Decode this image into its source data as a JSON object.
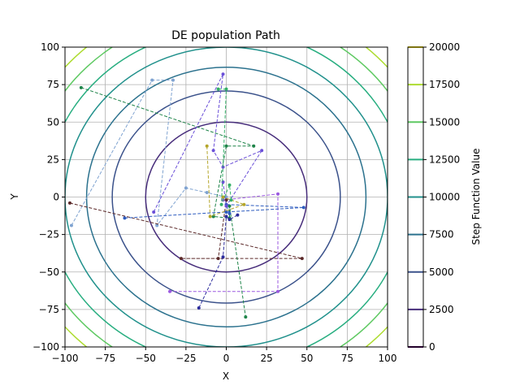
{
  "chart_data": {
    "type": "line",
    "title": "DE population Path",
    "xlabel": "X",
    "ylabel": "Y",
    "xlim": [
      -100,
      100
    ],
    "ylim": [
      -100,
      100
    ],
    "xticks": [
      -100,
      -75,
      -50,
      -25,
      0,
      25,
      50,
      75,
      100
    ],
    "yticks": [
      -100,
      -75,
      -50,
      -25,
      0,
      25,
      50,
      75,
      100
    ],
    "xtick_labels": [
      "−100",
      "−75",
      "−50",
      "−25",
      "0",
      "25",
      "50",
      "75",
      "100"
    ],
    "ytick_labels": [
      "−100",
      "−75",
      "−50",
      "−25",
      "0",
      "25",
      "50",
      "75",
      "100"
    ],
    "grid": true,
    "background_contours": {
      "function": "x^2 + y^2",
      "levels": [
        2500,
        5000,
        7500,
        10000,
        12500,
        15000,
        17500,
        20000
      ],
      "colors": [
        "#472d7b",
        "#3b528b",
        "#2c728e",
        "#21918c",
        "#28ae80",
        "#5ec962",
        "#addc30",
        "#fde725"
      ]
    },
    "colorbar": {
      "label": "Step Function Value",
      "min": 0,
      "max": 20000,
      "ticks": [
        0,
        2500,
        5000,
        7500,
        10000,
        12500,
        15000,
        17500,
        20000
      ],
      "tick_labels": [
        "0",
        "2500",
        "5000",
        "7500",
        "10000",
        "12500",
        "15000",
        "17500",
        "20000"
      ],
      "colors": [
        "#440154",
        "#472d7b",
        "#3b528b",
        "#2c728e",
        "#21918c",
        "#28ae80",
        "#5ec962",
        "#addc30",
        "#fde725"
      ]
    },
    "series": [
      {
        "color": "#9b59e0",
        "points": [
          [
            -2,
            -2
          ],
          [
            32,
            2
          ],
          [
            32,
            -63
          ],
          [
            -35,
            -63
          ]
        ]
      },
      {
        "color": "#7fa3d1",
        "points": [
          [
            -96,
            -19
          ],
          [
            -46,
            78
          ],
          [
            -33,
            78
          ],
          [
            -43,
            -19
          ],
          [
            -25,
            6
          ],
          [
            -12,
            3
          ],
          [
            0,
            0
          ]
        ]
      },
      {
        "color": "#5c2a2a",
        "points": [
          [
            -97,
            -4
          ],
          [
            47,
            -41
          ],
          [
            -28,
            -41
          ],
          [
            -5,
            -41
          ],
          [
            0,
            -2
          ]
        ]
      },
      {
        "color": "#1e8449",
        "points": [
          [
            -90,
            73
          ],
          [
            17,
            34
          ],
          [
            0,
            34
          ],
          [
            -8,
            -13
          ],
          [
            2,
            -14
          ],
          [
            2,
            -6
          ],
          [
            12,
            -80
          ]
        ]
      },
      {
        "color": "#2e5cbf",
        "points": [
          [
            -63,
            -14
          ],
          [
            0,
            -10
          ],
          [
            48,
            -7
          ],
          [
            0,
            -5
          ],
          [
            2,
            -11
          ]
        ]
      },
      {
        "color": "#6a4fd8",
        "points": [
          [
            -45,
            -10
          ],
          [
            -2,
            82
          ],
          [
            -8,
            31
          ],
          [
            -2,
            20
          ],
          [
            22,
            31
          ],
          [
            0,
            -6
          ],
          [
            -2,
            10
          ]
        ]
      },
      {
        "color": "#2c2c9c",
        "points": [
          [
            -17,
            -74
          ],
          [
            -2,
            -40
          ],
          [
            0,
            -13
          ],
          [
            2,
            -15
          ],
          [
            7,
            -12
          ]
        ]
      },
      {
        "color": "#b5a62a",
        "points": [
          [
            -12,
            34
          ],
          [
            -10,
            -13
          ],
          [
            11,
            -5
          ],
          [
            -2,
            0
          ]
        ]
      },
      {
        "color": "#35b068",
        "points": [
          [
            -5,
            72
          ],
          [
            0,
            72
          ],
          [
            -3,
            -5
          ],
          [
            2,
            8
          ],
          [
            3,
            -2
          ]
        ]
      }
    ]
  }
}
